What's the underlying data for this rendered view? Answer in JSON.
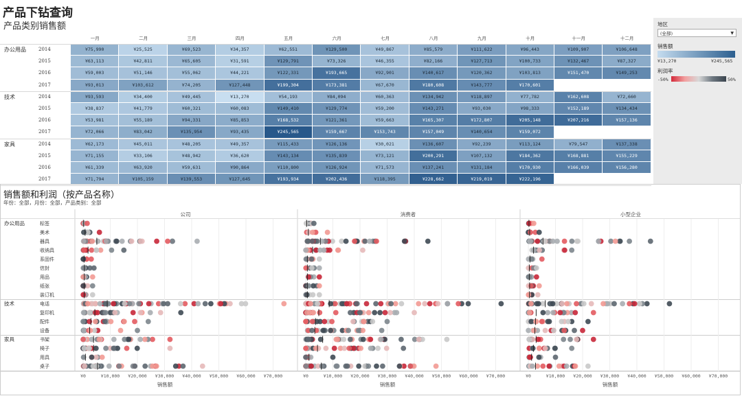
{
  "title": "产品下钻查询",
  "subtitle": "产品类别销售额",
  "months": [
    "一月",
    "二月",
    "三月",
    "四月",
    "五月",
    "六月",
    "七月",
    "八月",
    "九月",
    "十月",
    "十一月",
    "十二月"
  ],
  "heat_rows": [
    {
      "cat": "办公用品",
      "year": "2014",
      "vals": [
        "¥75,990",
        "¥25,525",
        "¥69,523",
        "¥34,357",
        "¥62,551",
        "¥129,500",
        "¥49,867",
        "¥85,579",
        "¥111,622",
        "¥96,443",
        "¥109,907",
        "¥106,648"
      ]
    },
    {
      "cat": "",
      "year": "2015",
      "vals": [
        "¥63,113",
        "¥42,811",
        "¥65,605",
        "¥31,591",
        "¥129,791",
        "¥73,326",
        "¥46,355",
        "¥82,166",
        "¥127,713",
        "¥100,733",
        "¥132,467",
        "¥87,327"
      ]
    },
    {
      "cat": "",
      "year": "2016",
      "vals": [
        "¥59,003",
        "¥51,146",
        "¥55,062",
        "¥44,221",
        "¥122,331",
        "¥193,665",
        "¥92,901",
        "¥140,617",
        "¥120,362",
        "¥103,813",
        "¥151,470",
        "¥149,253"
      ]
    },
    {
      "cat": "",
      "year": "2017",
      "vals": [
        "¥93,013",
        "¥103,612",
        "¥74,205",
        "¥127,448",
        "¥199,304",
        "¥173,381",
        "¥67,670",
        "¥180,608",
        "¥143,777",
        "¥170,601",
        "",
        ""
      ]
    },
    {
      "cat": "技术",
      "year": "2014",
      "vals": [
        "¥93,593",
        "¥34,400",
        "¥49,445",
        "¥13,270",
        "¥54,193",
        "¥84,094",
        "¥60,363",
        "¥134,942",
        "¥118,897",
        "¥77,782",
        "¥162,608",
        "¥72,660"
      ]
    },
    {
      "cat": "",
      "year": "2015",
      "vals": [
        "¥38,837",
        "¥41,779",
        "¥60,321",
        "¥60,083",
        "¥149,410",
        "¥129,774",
        "¥59,200",
        "¥143,271",
        "¥93,030",
        "¥98,333",
        "¥152,189",
        "¥134,434"
      ]
    },
    {
      "cat": "",
      "year": "2016",
      "vals": [
        "¥53,981",
        "¥55,189",
        "¥94,331",
        "¥85,853",
        "¥168,532",
        "¥121,361",
        "¥59,663",
        "¥165,307",
        "¥172,807",
        "¥205,148",
        "¥207,216",
        "¥157,136"
      ]
    },
    {
      "cat": "",
      "year": "2017",
      "vals": [
        "¥72,066",
        "¥83,042",
        "¥135,954",
        "¥93,435",
        "¥245,565",
        "¥159,667",
        "¥153,743",
        "¥157,049",
        "¥140,654",
        "¥159,072",
        "",
        ""
      ]
    },
    {
      "cat": "家具",
      "year": "2014",
      "vals": [
        "¥62,173",
        "¥45,011",
        "¥48,205",
        "¥49,357",
        "¥115,433",
        "¥126,136",
        "¥30,021",
        "¥136,607",
        "¥92,239",
        "¥113,124",
        "¥79,547",
        "¥137,338"
      ]
    },
    {
      "cat": "",
      "year": "2015",
      "vals": [
        "¥71,155",
        "¥33,106",
        "¥48,942",
        "¥36,620",
        "¥143,134",
        "¥135,839",
        "¥73,121",
        "¥200,291",
        "¥107,132",
        "¥184,362",
        "¥168,881",
        "¥155,229"
      ]
    },
    {
      "cat": "",
      "year": "2016",
      "vals": [
        "¥61,339",
        "¥63,920",
        "¥59,631",
        "¥90,864",
        "¥110,800",
        "¥126,924",
        "¥71,573",
        "¥137,241",
        "¥131,184",
        "¥170,930",
        "¥166,039",
        "¥156,280"
      ]
    },
    {
      "cat": "",
      "year": "2017",
      "vals": [
        "¥71,794",
        "¥105,159",
        "¥139,553",
        "¥127,645",
        "¥193,934",
        "¥202,436",
        "¥118,395",
        "¥228,662",
        "¥219,019",
        "¥222,196",
        "",
        ""
      ]
    }
  ],
  "legend": {
    "region_label": "地区",
    "region_value": "(全部)",
    "sales_label": "销售额",
    "sales_min": "¥13,270",
    "sales_max": "¥245,565",
    "profit_label": "利润率",
    "profit_min": "-50%",
    "profit_max": "50%"
  },
  "bottom": {
    "title": "销售额和利润（按产品名称）",
    "filter": "年份：全部，月份：全部，产品类别：全部",
    "segments": [
      "公司",
      "消费者",
      "小型企业"
    ],
    "ticks": [
      "¥0",
      "¥10,000",
      "¥20,000",
      "¥30,000",
      "¥40,000",
      "¥50,000",
      "¥60,000",
      "¥70,000"
    ],
    "xlabel": "销售额",
    "groups": [
      {
        "cat": "办公用品",
        "items": [
          "标签",
          "美术",
          "器具",
          "收纳具",
          "系固件",
          "信封",
          "用品",
          "纸张",
          "装订机"
        ]
      },
      {
        "cat": "技术",
        "items": [
          "电话",
          "复印机",
          "配件",
          "设备"
        ]
      },
      {
        "cat": "家具",
        "items": [
          "书架",
          "椅子",
          "用具",
          "桌子"
        ]
      }
    ]
  },
  "chart_data": {
    "type": "scatter",
    "title": "销售额和利润（按产品名称）",
    "xlabel": "销售额",
    "xlim": [
      0,
      75000
    ],
    "color_encoding": "利润率 (-50% to 50%)",
    "panels": [
      "公司",
      "消费者",
      "小型企业"
    ],
    "max_sales": {
      "公司": {
        "标签": 1500,
        "美术": 6000,
        "器具": 42000,
        "收纳具": 15000,
        "系固件": 3000,
        "信封": 4000,
        "用品": 3500,
        "纸张": 3500,
        "装订机": 3500,
        "电话": 74000,
        "复印机": 36000,
        "配件": 24000,
        "设备": 20000,
        "书架": 32000,
        "椅子": 32000,
        "用具": 7000,
        "桌子": 44000
      },
      "消费者": {
        "标签": 3000,
        "美术": 8000,
        "器具": 45000,
        "收纳具": 21000,
        "系固件": 5000,
        "信封": 5000,
        "用品": 5000,
        "纸张": 5000,
        "装订机": 5000,
        "电话": 72000,
        "复印机": 40000,
        "配件": 30000,
        "设备": 28000,
        "书架": 52000,
        "椅子": 36000,
        "用具": 10000,
        "桌子": 48000
      },
      "小型企业": {
        "标签": 2000,
        "美术": 4000,
        "器具": 45000,
        "收纳具": 16000,
        "系固件": 5000,
        "信封": 3000,
        "用品": 3000,
        "纸张": 4000,
        "装订机": 3500,
        "电话": 52000,
        "复印机": 24000,
        "配件": 22000,
        "设备": 20000,
        "书架": 24000,
        "椅子": 16000,
        "用具": 10000,
        "桌子": 22000
      }
    }
  }
}
